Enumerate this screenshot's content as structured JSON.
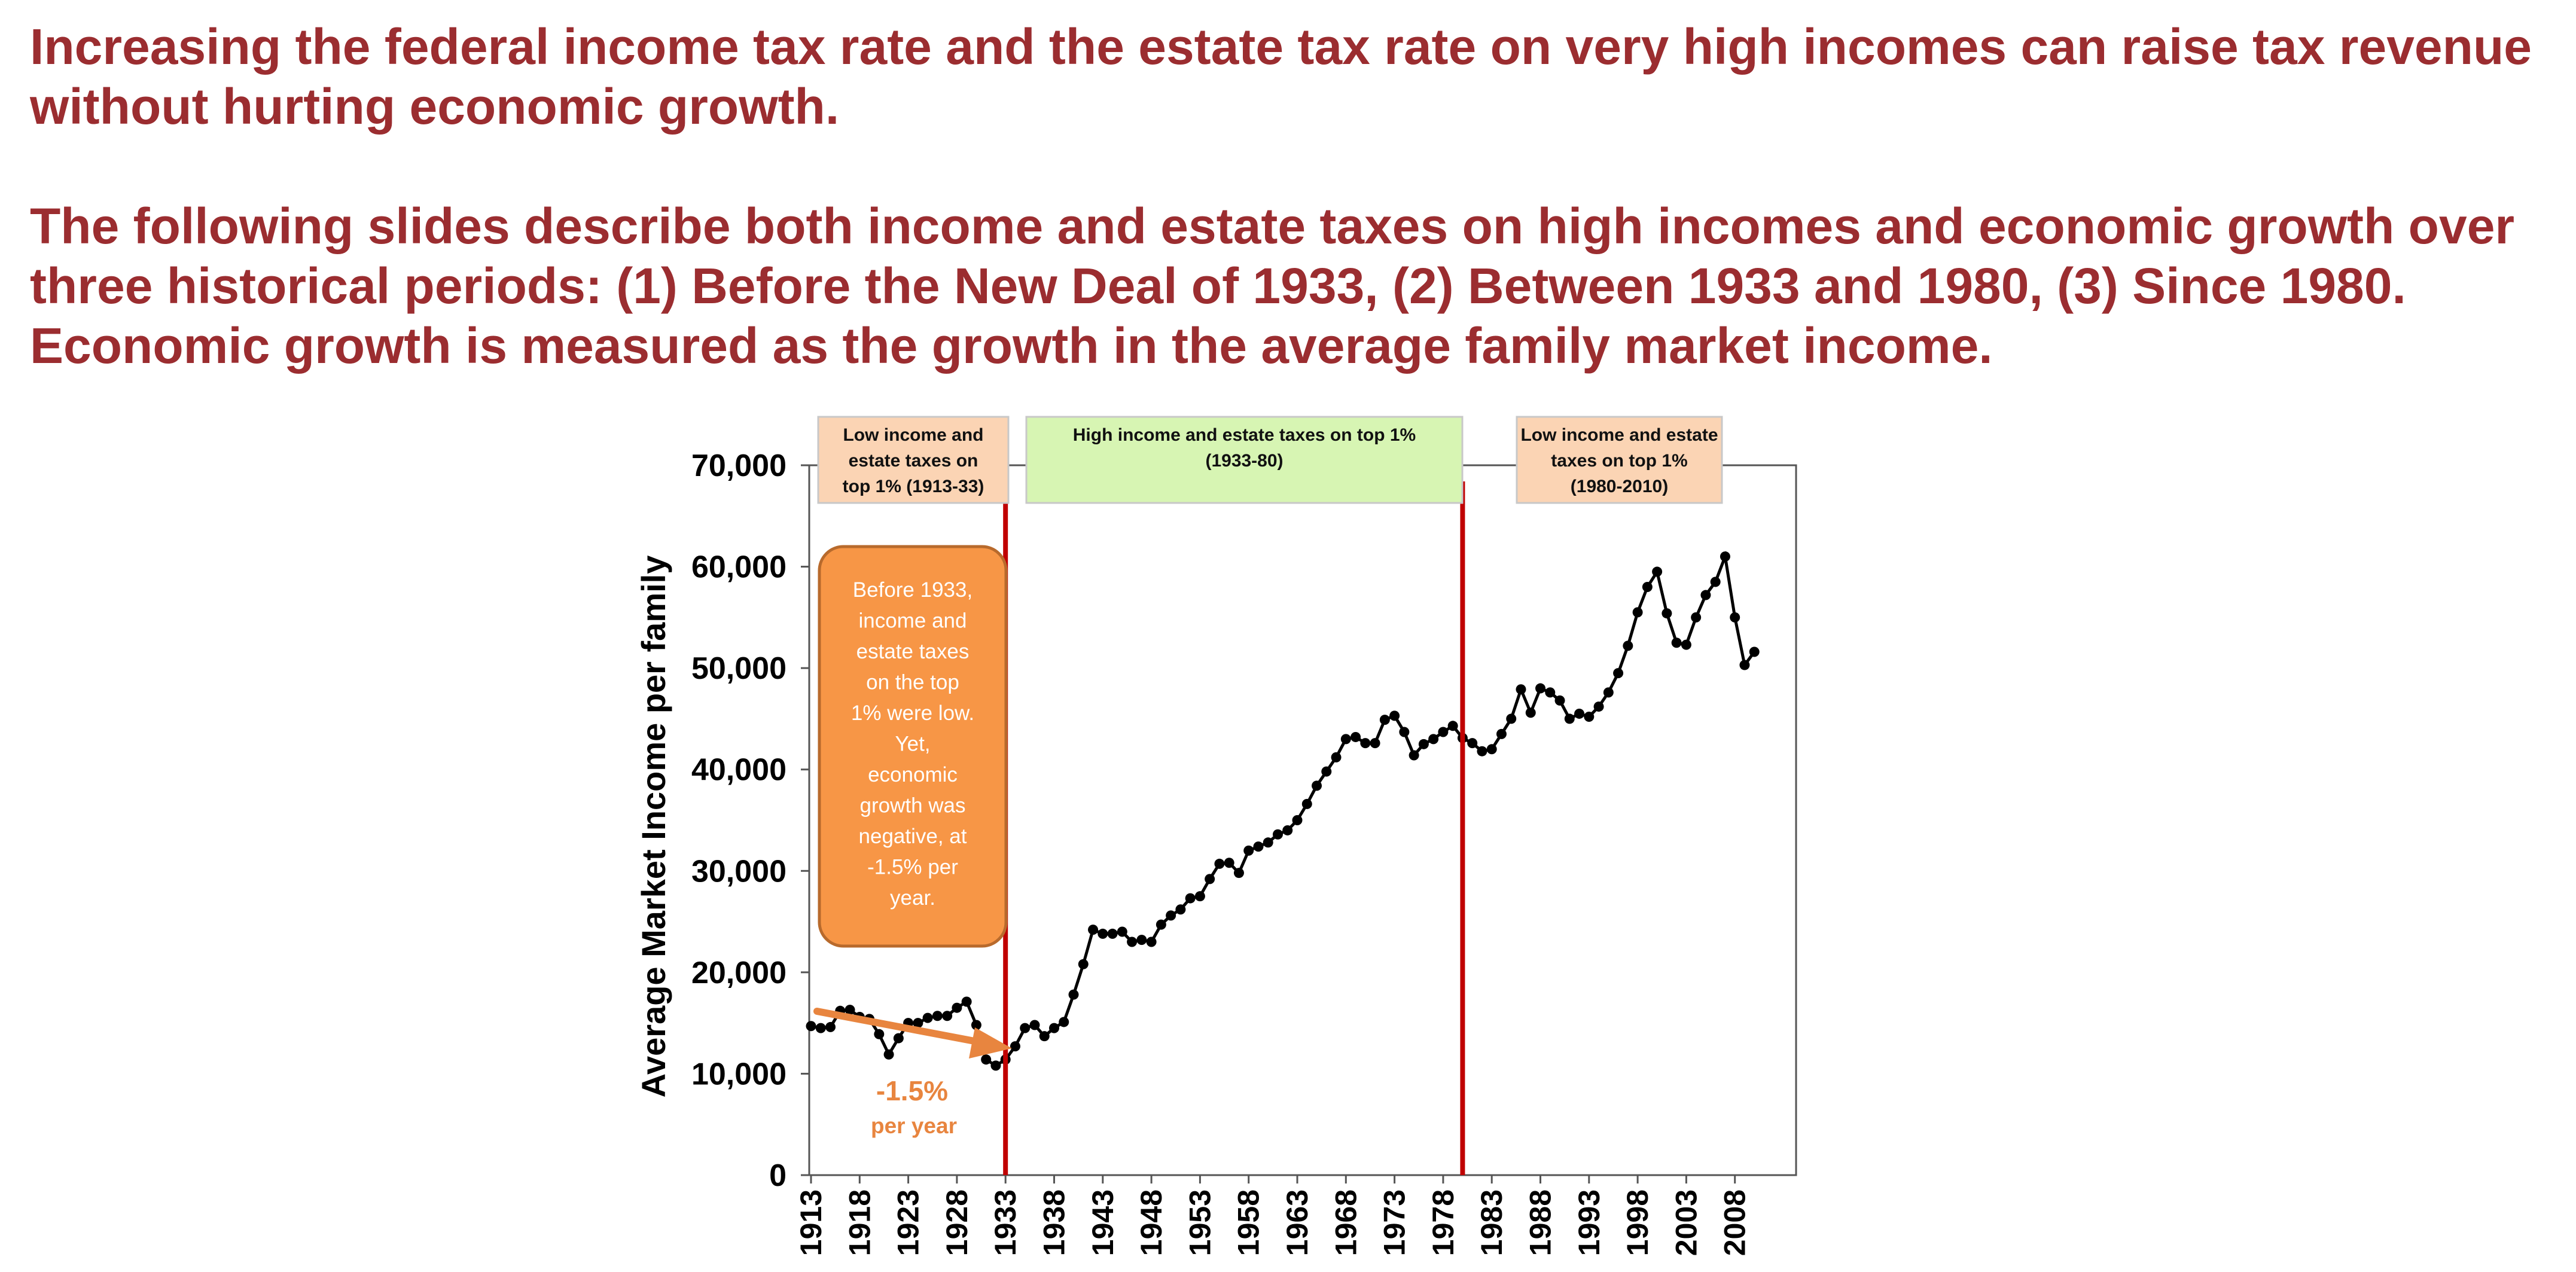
{
  "heading": {
    "line1": "Increasing the federal income tax rate and the estate tax rate on very high incomes can raise tax revenue",
    "line2": "without hurting economic growth.",
    "line3": "The following slides describe both income and estate taxes on high incomes and economic growth over",
    "line4": "three historical periods: (1) Before the New Deal of 1933, (2) Between 1933 and 1980, (3) Since 1980.",
    "line5": "Economic growth is measured as the growth in the average family market income."
  },
  "chart_data": {
    "type": "line",
    "ylabel": "Average Market Income per family",
    "xlabel": "",
    "ylim": [
      0,
      70000
    ],
    "xlim": [
      1913,
      2010
    ],
    "y_ticks": [
      "0",
      "10,000",
      "20,000",
      "30,000",
      "40,000",
      "50,000",
      "60,000",
      "70,000"
    ],
    "x_ticks": [
      "1913",
      "1918",
      "1923",
      "1928",
      "1933",
      "1938",
      "1943",
      "1948",
      "1953",
      "1958",
      "1963",
      "1968",
      "1973",
      "1978",
      "1983",
      "1988",
      "1993",
      "1998",
      "2003",
      "2008"
    ],
    "grid": false,
    "series": [
      {
        "color": "#000000",
        "x": [
          1913,
          1914,
          1915,
          1916,
          1917,
          1918,
          1919,
          1920,
          1921,
          1922,
          1923,
          1924,
          1925,
          1926,
          1927,
          1928,
          1929,
          1930,
          1931,
          1932,
          1933,
          1934,
          1935,
          1936,
          1937,
          1938,
          1939,
          1940,
          1941,
          1942,
          1943,
          1944,
          1945,
          1946,
          1947,
          1948,
          1949,
          1950,
          1951,
          1952,
          1953,
          1954,
          1955,
          1956,
          1957,
          1958,
          1959,
          1960,
          1961,
          1962,
          1963,
          1964,
          1965,
          1966,
          1967,
          1968,
          1969,
          1970,
          1971,
          1972,
          1973,
          1974,
          1975,
          1976,
          1977,
          1978,
          1979,
          1980,
          1981,
          1982,
          1983,
          1984,
          1985,
          1986,
          1987,
          1988,
          1989,
          1990,
          1991,
          1992,
          1993,
          1994,
          1995,
          1996,
          1997,
          1998,
          1999,
          2000,
          2001,
          2002,
          2003,
          2004,
          2005,
          2006,
          2007,
          2008,
          2009,
          2010
        ],
        "y": [
          14700,
          14500,
          14600,
          16200,
          16300,
          15600,
          15400,
          13900,
          11900,
          13500,
          15000,
          15000,
          15500,
          15700,
          15700,
          16500,
          17100,
          14800,
          11400,
          10800,
          11400,
          12700,
          14500,
          14800,
          13700,
          14500,
          15100,
          17800,
          20800,
          24200,
          23800,
          23800,
          24000,
          23000,
          23200,
          23000,
          24700,
          25600,
          26200,
          27300,
          27500,
          29200,
          30700,
          30800,
          29800,
          32000,
          32400,
          32800,
          33600,
          34000,
          35000,
          36600,
          38400,
          39800,
          41200,
          43000,
          43200,
          42600,
          42600,
          44900,
          45300,
          43700,
          41400,
          42500,
          43000,
          43700,
          44300,
          43100,
          42600,
          41800,
          42000,
          43500,
          45000,
          47900,
          45600,
          48000,
          47600,
          46800,
          45000,
          45500,
          45200,
          46200,
          47600,
          49500,
          52200,
          55500,
          58000,
          59500,
          55400,
          52500,
          52300,
          55000,
          57200,
          58500,
          61000,
          55000,
          50300,
          51600
        ]
      }
    ],
    "annotations": {
      "periods": [
        {
          "lines": [
            "Low income and",
            "estate taxes on",
            "top 1% (1913-33)"
          ],
          "color": "#fbd4b4"
        },
        {
          "lines": [
            "High income and estate taxes on top 1%",
            "(1933-80)"
          ],
          "color": "#d7f5b3"
        },
        {
          "lines": [
            "Low income and estate",
            "taxes on top 1%",
            "(1980-2010)"
          ],
          "color": "#fbd4b4"
        }
      ],
      "dividers": [
        1933,
        1980
      ],
      "callout": {
        "lines": [
          "Before 1933,",
          "income and",
          "estate taxes",
          "on the top",
          "1% were low.",
          "Yet,",
          "economic",
          "growth was",
          "negative, at",
          "-1.5% per",
          "year."
        ],
        "color": "#f79646"
      },
      "rate": {
        "value": "-1.5%",
        "unit": "per year",
        "color": "#e8853f"
      }
    }
  }
}
